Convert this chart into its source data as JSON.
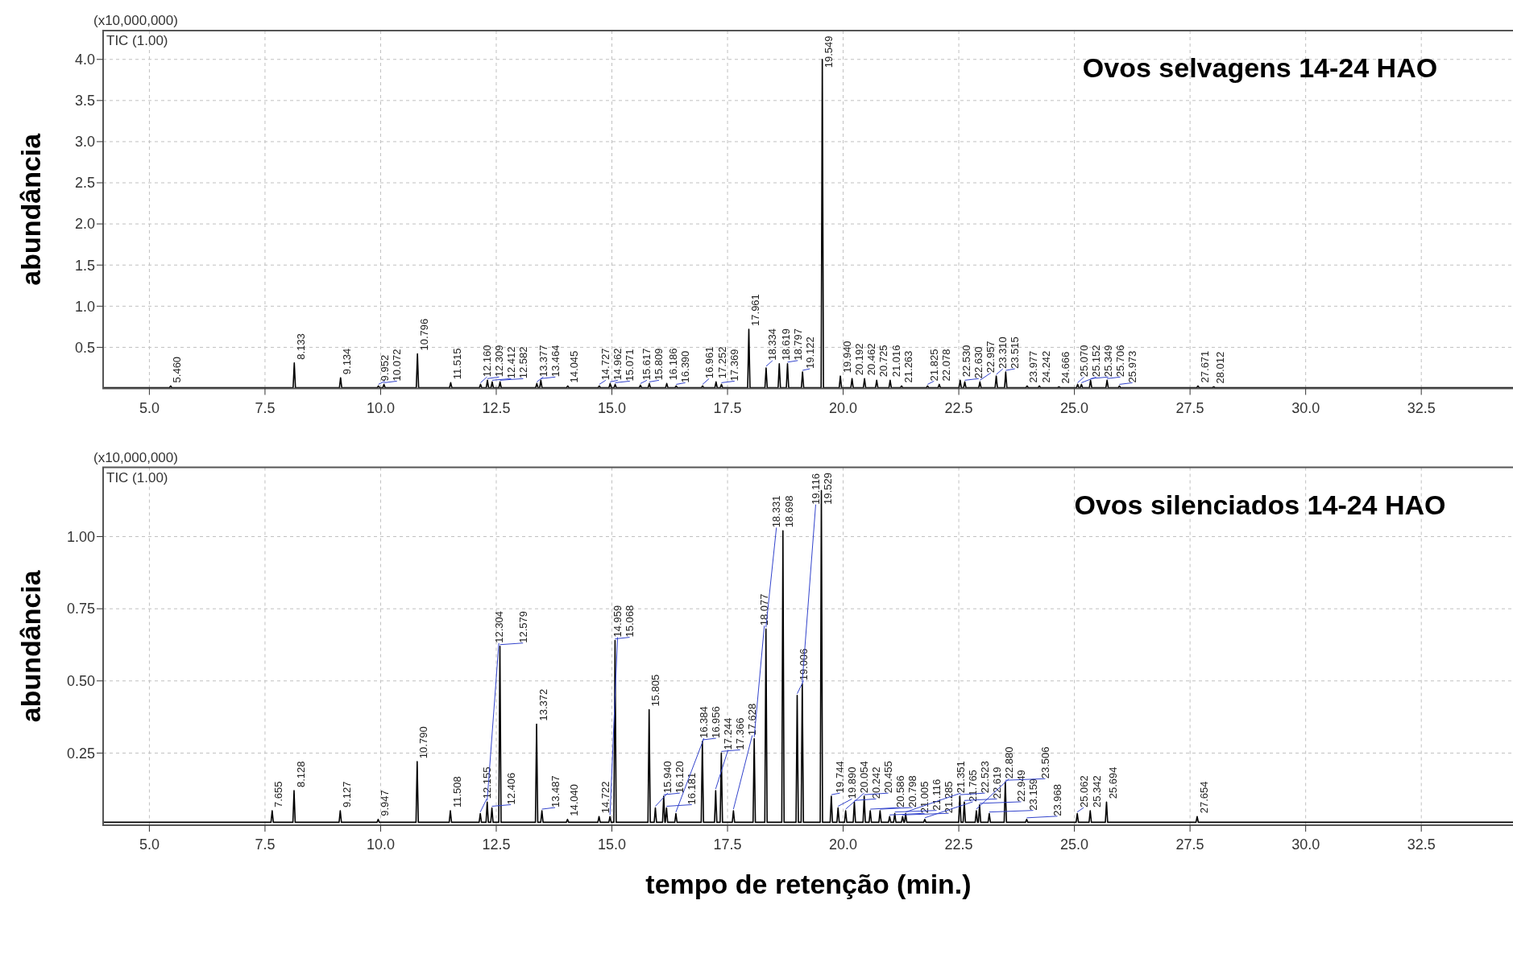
{
  "chart_data": [
    {
      "type": "line",
      "title": "Ovos selvagens 14-24 HAO",
      "ylabel": "abundância",
      "xlim": [
        4.0,
        34.5
      ],
      "ylim": [
        0,
        4.35
      ],
      "xticks": [
        {
          "value": 5,
          "label": "5.0"
        },
        7.5,
        {
          "value": 10,
          "label": "10.0"
        },
        12.5,
        {
          "value": 15,
          "label": "15.0"
        },
        17.5,
        {
          "value": 20,
          "label": "20.0"
        },
        22.5,
        {
          "value": 25,
          "label": "25.0"
        },
        27.5,
        {
          "value": 30,
          "label": "30.0"
        },
        32.5
      ],
      "yticks": [
        0.5,
        {
          "value": 1,
          "label": "1.0"
        },
        1.5,
        {
          "value": 2,
          "label": "2.0"
        },
        2.5,
        {
          "value": 3,
          "label": "3.0"
        },
        3.5,
        {
          "value": 4,
          "label": "4.0"
        }
      ],
      "grid": true,
      "series": [
        {
          "color": "#000000",
          "x": [
            4.0,
            5.435,
            5.46,
            5.485,
            8.108,
            8.133,
            8.158,
            9.109,
            9.134,
            9.159,
            9.927,
            9.952,
            9.977,
            10.047,
            10.072,
            10.097,
            10.771,
            10.796,
            10.821,
            11.49,
            11.515,
            11.54,
            12.135,
            12.16,
            12.185,
            12.284,
            12.309,
            12.334,
            12.387,
            12.412,
            12.437,
            12.557,
            12.582,
            12.607,
            13.352,
            13.377,
            13.402,
            13.439,
            13.464,
            13.489,
            14.02,
            14.045,
            14.07,
            14.702,
            14.727,
            14.752,
            14.937,
            14.962,
            14.987,
            15.046,
            15.071,
            15.096,
            15.592,
            15.617,
            15.642,
            15.784,
            15.809,
            15.834,
            16.161,
            16.186,
            16.211,
            16.365,
            16.39,
            16.415,
            16.936,
            16.961,
            16.986,
            17.227,
            17.252,
            17.277,
            17.344,
            17.369,
            17.394,
            17.936,
            17.961,
            17.986,
            18.309,
            18.334,
            18.359,
            18.594,
            18.619,
            18.644,
            18.772,
            18.797,
            18.822,
            19.097,
            19.122,
            19.147,
            19.524,
            19.549,
            19.574,
            19.915,
            19.94,
            19.965,
            20.167,
            20.192,
            20.217,
            20.437,
            20.462,
            20.487,
            20.7,
            20.725,
            20.75,
            20.991,
            21.016,
            21.041,
            21.238,
            21.263,
            21.288,
            21.8,
            21.825,
            21.85,
            22.053,
            22.078,
            22.103,
            22.505,
            22.53,
            22.555,
            22.605,
            22.63,
            22.655,
            22.932,
            22.957,
            22.982,
            23.285,
            23.31,
            23.335,
            23.49,
            23.515,
            23.54,
            23.952,
            23.977,
            24.002,
            24.217,
            24.242,
            24.267,
            24.641,
            24.666,
            24.691,
            25.045,
            25.07,
            25.095,
            25.127,
            25.152,
            25.177,
            25.324,
            25.349,
            25.374,
            25.681,
            25.706,
            25.731,
            25.948,
            25.973,
            25.998,
            27.646,
            27.671,
            27.696,
            27.987,
            28.012,
            28.037,
            34.5
          ],
          "values": [
            0.01,
            0.01,
            0.03,
            0.01,
            0.01,
            0.31,
            0.01,
            0.01,
            0.13,
            0.01,
            0.01,
            0.03,
            0.01,
            0.01,
            0.05,
            0.01,
            0.01,
            0.42,
            0.01,
            0.01,
            0.07,
            0.01,
            0.01,
            0.05,
            0.01,
            0.01,
            0.1,
            0.01,
            0.01,
            0.08,
            0.01,
            0.01,
            0.08,
            0.01,
            0.01,
            0.06,
            0.01,
            0.01,
            0.1,
            0.01,
            0.01,
            0.03,
            0.01,
            0.01,
            0.03,
            0.01,
            0.01,
            0.06,
            0.01,
            0.01,
            0.05,
            0.01,
            0.01,
            0.04,
            0.01,
            0.01,
            0.06,
            0.01,
            0.01,
            0.06,
            0.01,
            0.01,
            0.03,
            0.01,
            0.01,
            0.03,
            0.01,
            0.01,
            0.08,
            0.01,
            0.01,
            0.05,
            0.01,
            0.01,
            0.72,
            0.01,
            0.01,
            0.25,
            0.01,
            0.01,
            0.3,
            0.01,
            0.01,
            0.3,
            0.01,
            0.01,
            0.2,
            0.01,
            0.01,
            4.0,
            0.01,
            0.01,
            0.15,
            0.01,
            0.01,
            0.12,
            0.01,
            0.01,
            0.12,
            0.01,
            0.01,
            0.1,
            0.01,
            0.01,
            0.1,
            0.01,
            0.01,
            0.03,
            0.01,
            0.01,
            0.03,
            0.01,
            0.01,
            0.05,
            0.01,
            0.01,
            0.1,
            0.01,
            0.01,
            0.08,
            0.01,
            0.01,
            0.08,
            0.01,
            0.01,
            0.15,
            0.01,
            0.01,
            0.2,
            0.01,
            0.01,
            0.03,
            0.01,
            0.01,
            0.03,
            0.01,
            0.01,
            0.02,
            0.01,
            0.01,
            0.05,
            0.01,
            0.01,
            0.05,
            0.01,
            0.01,
            0.1,
            0.01,
            0.01,
            0.1,
            0.01,
            0.01,
            0.03,
            0.01,
            0.01,
            0.03,
            0.01,
            0.01,
            0.02,
            0.01,
            0.01
          ]
        }
      ],
      "annotations": [
        "(x10,000,000)",
        "TIC (1.00)",
        {
          "text": "5.460",
          "x": 5.46,
          "y": 0.03
        },
        {
          "text": "8.133",
          "x": 8.133,
          "y": 0.31
        },
        {
          "text": "9.134",
          "x": 9.134,
          "y": 0.13
        },
        {
          "text": "9.952",
          "x": 9.952,
          "y": 0.03
        },
        {
          "text": "10.072",
          "x": 10.072,
          "y": 0.05
        },
        {
          "text": "10.796",
          "x": 10.796,
          "y": 0.42
        },
        {
          "text": "11.515",
          "x": 11.515,
          "y": 0.07
        },
        {
          "text": "12.160",
          "x": 12.16,
          "y": 0.05
        },
        {
          "text": "12.309",
          "x": 12.309,
          "y": 0.1
        },
        {
          "text": "12.412",
          "x": 12.412,
          "y": 0.08
        },
        {
          "text": "12.582",
          "x": 12.582,
          "y": 0.08
        },
        {
          "text": "13.377",
          "x": 13.377,
          "y": 0.06
        },
        {
          "text": "13.464",
          "x": 13.464,
          "y": 0.1
        },
        {
          "text": "14.045",
          "x": 14.045,
          "y": 0.03
        },
        {
          "text": "14.727",
          "x": 14.727,
          "y": 0.03
        },
        {
          "text": "14.962",
          "x": 14.962,
          "y": 0.06
        },
        {
          "text": "15.071",
          "x": 15.071,
          "y": 0.05
        },
        {
          "text": "15.617",
          "x": 15.617,
          "y": 0.04
        },
        {
          "text": "15.809",
          "x": 15.809,
          "y": 0.06
        },
        {
          "text": "16.186",
          "x": 16.186,
          "y": 0.06
        },
        {
          "text": "16.390",
          "x": 16.39,
          "y": 0.03
        },
        {
          "text": "16.961",
          "x": 16.961,
          "y": 0.03
        },
        {
          "text": "17.252",
          "x": 17.252,
          "y": 0.08
        },
        {
          "text": "17.369",
          "x": 17.369,
          "y": 0.05
        },
        {
          "text": "17.961",
          "x": 17.961,
          "y": 0.72
        },
        {
          "text": "18.334",
          "x": 18.334,
          "y": 0.25
        },
        {
          "text": "18.619",
          "x": 18.619,
          "y": 0.3
        },
        {
          "text": "18.797",
          "x": 18.797,
          "y": 0.3
        },
        {
          "text": "19.122",
          "x": 19.122,
          "y": 0.2
        },
        {
          "text": "19.549",
          "x": 19.549,
          "y": 4.0
        },
        {
          "text": "19.940",
          "x": 19.94,
          "y": 0.15
        },
        {
          "text": "20.192",
          "x": 20.192,
          "y": 0.12
        },
        {
          "text": "20.462",
          "x": 20.462,
          "y": 0.12
        },
        {
          "text": "20.725",
          "x": 20.725,
          "y": 0.1
        },
        {
          "text": "21.016",
          "x": 21.016,
          "y": 0.1
        },
        {
          "text": "21.263",
          "x": 21.263,
          "y": 0.03
        },
        {
          "text": "21.825",
          "x": 21.825,
          "y": 0.03
        },
        {
          "text": "22.078",
          "x": 22.078,
          "y": 0.05
        },
        {
          "text": "22.530",
          "x": 22.53,
          "y": 0.1
        },
        {
          "text": "22.630",
          "x": 22.63,
          "y": 0.08
        },
        {
          "text": "22.957",
          "x": 22.957,
          "y": 0.08
        },
        {
          "text": "23.310",
          "x": 23.31,
          "y": 0.15
        },
        {
          "text": "23.515",
          "x": 23.515,
          "y": 0.2
        },
        {
          "text": "23.977",
          "x": 23.977,
          "y": 0.03
        },
        {
          "text": "24.242",
          "x": 24.242,
          "y": 0.03
        },
        {
          "text": "24.666",
          "x": 24.666,
          "y": 0.02
        },
        {
          "text": "25.070",
          "x": 25.07,
          "y": 0.05
        },
        {
          "text": "25.152",
          "x": 25.152,
          "y": 0.05
        },
        {
          "text": "25.349",
          "x": 25.349,
          "y": 0.1
        },
        {
          "text": "25.706",
          "x": 25.706,
          "y": 0.1
        },
        {
          "text": "25.973",
          "x": 25.973,
          "y": 0.03
        },
        {
          "text": "27.671",
          "x": 27.671,
          "y": 0.03
        },
        {
          "text": "28.012",
          "x": 28.012,
          "y": 0.02
        }
      ]
    },
    {
      "type": "line",
      "title": "Ovos silenciados 14-24 HAO",
      "ylabel": "abundância",
      "xlabel": "tempo de retenção (min.)",
      "xlim": [
        4.0,
        34.5
      ],
      "ylim": [
        0,
        1.24
      ],
      "xticks": [
        {
          "value": 5,
          "label": "5.0"
        },
        7.5,
        {
          "value": 10,
          "label": "10.0"
        },
        12.5,
        {
          "value": 15,
          "label": "15.0"
        },
        17.5,
        {
          "value": 20,
          "label": "20.0"
        },
        22.5,
        {
          "value": 25,
          "label": "25.0"
        },
        27.5,
        {
          "value": 30,
          "label": "30.0"
        },
        32.5
      ],
      "yticks": [
        0.25,
        {
          "value": 0.5,
          "label": "0.50"
        },
        0.75,
        {
          "value": 1,
          "label": "1.00"
        }
      ],
      "grid": true,
      "series": [
        {
          "color": "#000000",
          "x": [
            4.0,
            7.63,
            7.655,
            7.68,
            8.103,
            8.128,
            8.153,
            9.102,
            9.127,
            9.152,
            9.922,
            9.947,
            9.972,
            10.765,
            10.79,
            10.815,
            11.483,
            11.508,
            11.533,
            12.13,
            12.155,
            12.18,
            12.279,
            12.304,
            12.329,
            12.381,
            12.406,
            12.431,
            12.554,
            12.579,
            12.604,
            13.347,
            13.372,
            13.397,
            13.462,
            13.487,
            13.512,
            14.015,
            14.04,
            14.065,
            14.697,
            14.722,
            14.747,
            14.934,
            14.959,
            14.984,
            15.043,
            15.068,
            15.093,
            15.78,
            15.805,
            15.83,
            15.915,
            15.94,
            15.965,
            16.095,
            16.12,
            16.145,
            16.156,
            16.181,
            16.206,
            16.359,
            16.384,
            16.409,
            16.931,
            16.956,
            16.981,
            17.219,
            17.244,
            17.269,
            17.341,
            17.366,
            17.391,
            17.603,
            17.628,
            17.653,
            18.052,
            18.077,
            18.102,
            18.306,
            18.331,
            18.356,
            18.673,
            18.698,
            18.723,
            18.981,
            19.006,
            19.031,
            19.091,
            19.116,
            19.141,
            19.504,
            19.529,
            19.554,
            19.719,
            19.744,
            19.769,
            19.865,
            19.89,
            19.915,
            20.029,
            20.054,
            20.079,
            20.217,
            20.242,
            20.267,
            20.43,
            20.455,
            20.48,
            20.561,
            20.586,
            20.611,
            20.773,
            20.798,
            20.823,
            20.98,
            21.005,
            21.03,
            21.091,
            21.116,
            21.141,
            21.26,
            21.285,
            21.31,
            21.326,
            21.351,
            21.376,
            21.74,
            21.765,
            21.79,
            22.498,
            22.523,
            22.548,
            22.594,
            22.619,
            22.644,
            22.855,
            22.88,
            22.905,
            22.924,
            22.949,
            22.974,
            23.134,
            23.159,
            23.184,
            23.481,
            23.506,
            23.531,
            23.943,
            23.968,
            23.993,
            25.037,
            25.062,
            25.087,
            25.317,
            25.342,
            25.367,
            25.669,
            25.694,
            25.719,
            27.629,
            27.654,
            27.679,
            34.5
          ],
          "values": [
            0.01,
            0.01,
            0.05,
            0.01,
            0.01,
            0.12,
            0.01,
            0.01,
            0.05,
            0.01,
            0.01,
            0.02,
            0.01,
            0.01,
            0.22,
            0.01,
            0.01,
            0.05,
            0.01,
            0.01,
            0.04,
            0.01,
            0.01,
            0.08,
            0.01,
            0.01,
            0.06,
            0.01,
            0.01,
            0.62,
            0.01,
            0.01,
            0.35,
            0.01,
            0.01,
            0.05,
            0.01,
            0.01,
            0.02,
            0.01,
            0.01,
            0.03,
            0.01,
            0.01,
            0.03,
            0.01,
            0.01,
            0.64,
            0.01,
            0.01,
            0.4,
            0.01,
            0.01,
            0.06,
            0.01,
            0.01,
            0.1,
            0.01,
            0.01,
            0.06,
            0.01,
            0.01,
            0.04,
            0.01,
            0.01,
            0.29,
            0.01,
            0.01,
            0.12,
            0.01,
            0.01,
            0.25,
            0.01,
            0.01,
            0.05,
            0.01,
            0.01,
            0.3,
            0.01,
            0.01,
            0.68,
            0.01,
            0.01,
            1.02,
            0.01,
            0.01,
            0.45,
            0.01,
            0.01,
            0.49,
            0.01,
            0.01,
            1.16,
            0.01,
            0.01,
            0.1,
            0.01,
            0.01,
            0.06,
            0.01,
            0.01,
            0.05,
            0.01,
            0.01,
            0.08,
            0.01,
            0.01,
            0.1,
            0.01,
            0.01,
            0.05,
            0.01,
            0.01,
            0.05,
            0.01,
            0.01,
            0.03,
            0.01,
            0.01,
            0.04,
            0.01,
            0.01,
            0.03,
            0.01,
            0.01,
            0.04,
            0.01,
            0.01,
            0.02,
            0.01,
            0.01,
            0.1,
            0.01,
            0.01,
            0.08,
            0.01,
            0.01,
            0.05,
            0.01,
            0.01,
            0.07,
            0.01,
            0.01,
            0.04,
            0.01,
            0.01,
            0.15,
            0.01,
            0.01,
            0.02,
            0.01,
            0.01,
            0.04,
            0.01,
            0.01,
            0.05,
            0.01,
            0.01,
            0.08,
            0.01,
            0.01,
            0.03,
            0.01,
            0.01
          ]
        }
      ],
      "annotations": [
        "(x10,000,000)",
        "TIC (1.00)",
        {
          "text": "7.655",
          "x": 7.655,
          "y": 0.05
        },
        {
          "text": "8.128",
          "x": 8.128,
          "y": 0.12
        },
        {
          "text": "9.127",
          "x": 9.127,
          "y": 0.05
        },
        {
          "text": "9.947",
          "x": 9.947,
          "y": 0.02
        },
        {
          "text": "10.790",
          "x": 10.79,
          "y": 0.22
        },
        {
          "text": "11.508",
          "x": 11.508,
          "y": 0.05
        },
        {
          "text": "12.155",
          "x": 12.155,
          "y": 0.04
        },
        {
          "text": "12.304",
          "x": 12.304,
          "y": 0.08
        },
        {
          "text": "12.406",
          "x": 12.406,
          "y": 0.06
        },
        {
          "text": "12.579",
          "x": 12.579,
          "y": 0.62
        },
        {
          "text": "13.372",
          "x": 13.372,
          "y": 0.35
        },
        {
          "text": "13.487",
          "x": 13.487,
          "y": 0.05
        },
        {
          "text": "14.040",
          "x": 14.04,
          "y": 0.02
        },
        {
          "text": "14.722",
          "x": 14.722,
          "y": 0.03
        },
        {
          "text": "14.959",
          "x": 14.959,
          "y": 0.03
        },
        {
          "text": "15.068",
          "x": 15.068,
          "y": 0.64
        },
        {
          "text": "15.805",
          "x": 15.805,
          "y": 0.4
        },
        {
          "text": "15.940",
          "x": 15.94,
          "y": 0.06
        },
        {
          "text": "16.120",
          "x": 16.12,
          "y": 0.1
        },
        {
          "text": "16.181",
          "x": 16.181,
          "y": 0.06
        },
        {
          "text": "16.384",
          "x": 16.384,
          "y": 0.04
        },
        {
          "text": "16.956",
          "x": 16.956,
          "y": 0.29
        },
        {
          "text": "17.244",
          "x": 17.244,
          "y": 0.12
        },
        {
          "text": "17.366",
          "x": 17.366,
          "y": 0.25
        },
        {
          "text": "17.628",
          "x": 17.628,
          "y": 0.05
        },
        {
          "text": "18.077",
          "x": 18.077,
          "y": 0.3
        },
        {
          "text": "18.331",
          "x": 18.331,
          "y": 0.68
        },
        {
          "text": "18.698",
          "x": 18.698,
          "y": 1.02
        },
        {
          "text": "19.006",
          "x": 19.006,
          "y": 0.45
        },
        {
          "text": "19.116",
          "x": 19.116,
          "y": 0.49
        },
        {
          "text": "19.529",
          "x": 19.529,
          "y": 1.16
        },
        {
          "text": "19.744",
          "x": 19.744,
          "y": 0.1
        },
        {
          "text": "19.890",
          "x": 19.89,
          "y": 0.06
        },
        {
          "text": "20.054",
          "x": 20.054,
          "y": 0.05
        },
        {
          "text": "20.242",
          "x": 20.242,
          "y": 0.08
        },
        {
          "text": "20.455",
          "x": 20.455,
          "y": 0.1
        },
        {
          "text": "20.586",
          "x": 20.586,
          "y": 0.05
        },
        {
          "text": "20.798",
          "x": 20.798,
          "y": 0.05
        },
        {
          "text": "21.005",
          "x": 21.005,
          "y": 0.03
        },
        {
          "text": "21.116",
          "x": 21.116,
          "y": 0.04
        },
        {
          "text": "21.285",
          "x": 21.285,
          "y": 0.03
        },
        {
          "text": "21.351",
          "x": 21.351,
          "y": 0.04
        },
        {
          "text": "21.765",
          "x": 21.765,
          "y": 0.02
        },
        {
          "text": "22.523",
          "x": 22.523,
          "y": 0.1
        },
        {
          "text": "22.619",
          "x": 22.619,
          "y": 0.08
        },
        {
          "text": "22.880",
          "x": 22.88,
          "y": 0.05
        },
        {
          "text": "22.949",
          "x": 22.949,
          "y": 0.07
        },
        {
          "text": "23.159",
          "x": 23.159,
          "y": 0.04
        },
        {
          "text": "23.506",
          "x": 23.506,
          "y": 0.15
        },
        {
          "text": "23.968",
          "x": 23.968,
          "y": 0.02
        },
        {
          "text": "25.062",
          "x": 25.062,
          "y": 0.04
        },
        {
          "text": "25.342",
          "x": 25.342,
          "y": 0.05
        },
        {
          "text": "25.694",
          "x": 25.694,
          "y": 0.08
        },
        {
          "text": "27.654",
          "x": 27.654,
          "y": 0.03
        }
      ]
    }
  ]
}
